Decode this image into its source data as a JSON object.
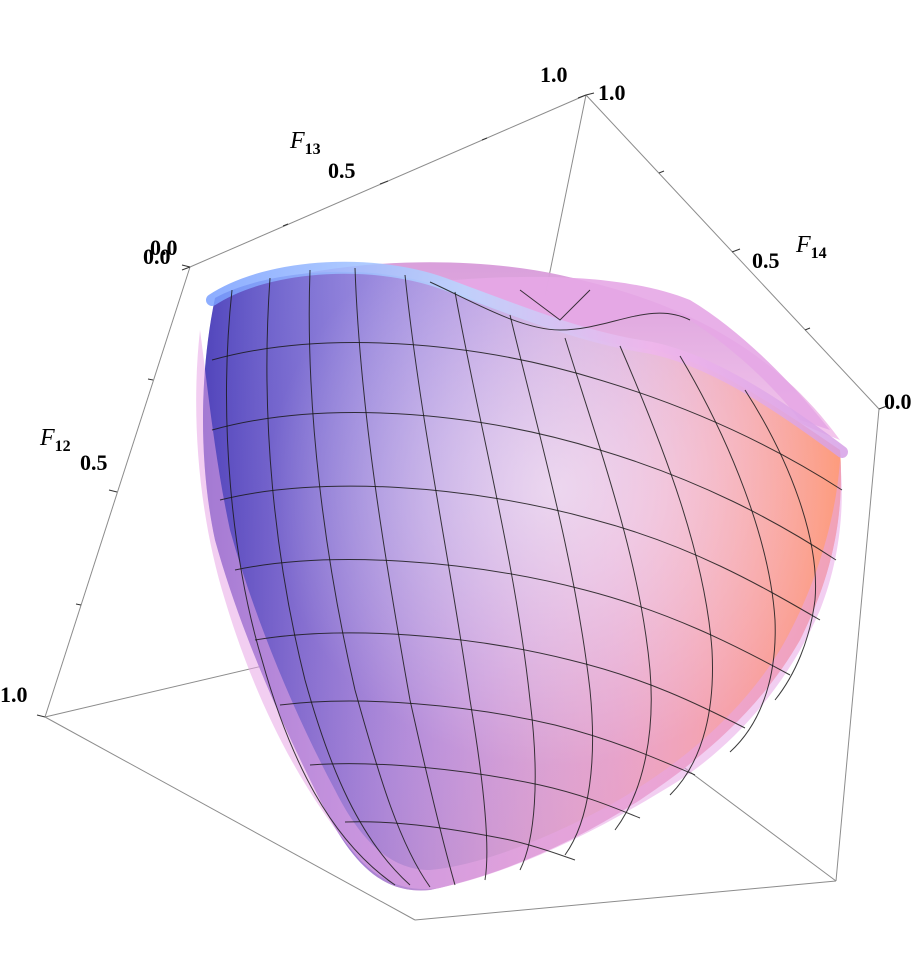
{
  "chart_data": {
    "type": "3d-surface",
    "title": "",
    "axes": [
      {
        "name": "F12",
        "label_main": "F",
        "label_sub": "12",
        "range": [
          0,
          1
        ],
        "ticks": [
          "0.0",
          "0.5",
          "1.0"
        ]
      },
      {
        "name": "F13",
        "label_main": "F",
        "label_sub": "13",
        "range": [
          0,
          1
        ],
        "ticks": [
          "0.0",
          "0.5",
          "1.0"
        ]
      },
      {
        "name": "F14",
        "label_main": "F",
        "label_sub": "14",
        "range": [
          0,
          1
        ],
        "ticks": [
          "0.0",
          "0.5",
          "1.0"
        ]
      }
    ],
    "box": true,
    "grid": false,
    "legend": "none",
    "surface": {
      "description_shape": "curved-cone-cup",
      "colors": {
        "violet": "#6a4fd8",
        "lavender": "#b8a6f0",
        "pink": "#f3a9d8",
        "salmon": "#f48a84",
        "sky": "#9fd0ff"
      }
    }
  }
}
